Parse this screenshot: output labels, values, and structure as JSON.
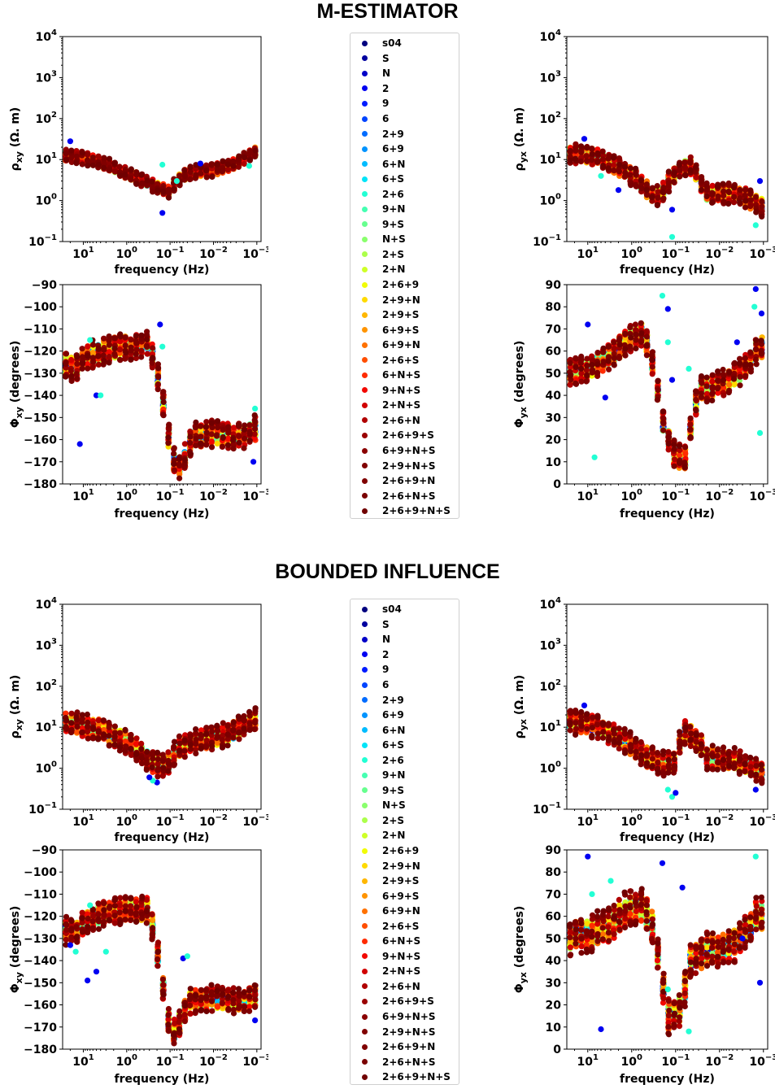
{
  "sections": [
    {
      "title": "M-ESTIMATOR"
    },
    {
      "title": "BOUNDED INFLUENCE"
    }
  ],
  "legend_entries": [
    "s04",
    "S",
    "N",
    "2",
    "9",
    "6",
    "2+9",
    "6+9",
    "6+N",
    "6+S",
    "2+6",
    "9+N",
    "9+S",
    "N+S",
    "2+S",
    "2+N",
    "2+6+9",
    "2+9+N",
    "2+9+S",
    "6+9+S",
    "6+9+N",
    "2+6+S",
    "6+N+S",
    "9+N+S",
    "2+N+S",
    "2+6+N",
    "2+6+9+S",
    "6+9+N+S",
    "2+9+N+S",
    "2+6+9+N",
    "2+6+N+S",
    "2+6+9+N+S"
  ],
  "legend_colors": [
    "#00007f",
    "#00009f",
    "#0000c8",
    "#0000f1",
    "#001cff",
    "#0044ff",
    "#006cff",
    "#0094ff",
    "#00bcff",
    "#00e4f8",
    "#22ffd4",
    "#45ffb2",
    "#67ff8f",
    "#8aff6d",
    "#acff4b",
    "#cfff28",
    "#f1fc06",
    "#ffda00",
    "#ffb700",
    "#ff9400",
    "#ff7100",
    "#ff4e00",
    "#ff2b00",
    "#f20800",
    "#d10000",
    "#b00000",
    "#9a0000",
    "#8a0000",
    "#800000",
    "#7f0000",
    "#7a0000",
    "#700000"
  ],
  "axis_labels": {
    "frequency": "frequency (Hz)",
    "rho_xy": "ρxy (Ω. m)",
    "rho_yx": "ρyx (Ω. m)",
    "phi_xy": "Φxy (degrees)",
    "phi_yx": "Φyx (degrees)"
  },
  "chart_data": [
    {
      "id": "m-rho-xy",
      "type": "scatter",
      "section": "M-ESTIMATOR",
      "ylabel": "ρxy (Ω. m)",
      "xlabel": "frequency (Hz)",
      "xscale": "log",
      "x_decreasing": true,
      "xlim": [
        30,
        0.0008
      ],
      "yscale": "log",
      "ylim": [
        0.1,
        10000
      ],
      "xticks": [
        "10^1",
        "10^0",
        "10^-1",
        "10^-2",
        "10^-3"
      ],
      "yticks": [
        "10^-1",
        "10^0",
        "10^1",
        "10^2",
        "10^3",
        "10^4"
      ],
      "mean_curve": {
        "f": [
          30,
          10,
          3,
          1,
          0.3,
          0.15,
          0.1,
          0.05,
          0.03,
          0.01,
          0.003,
          0.001
        ],
        "v": [
          13,
          11,
          7.5,
          4.5,
          2.5,
          1.9,
          1.6,
          4,
          5,
          5.5,
          8,
          16
        ]
      },
      "spread": 0.12,
      "outliers": [
        {
          "f": 20,
          "v": 28
        },
        {
          "f": 0.15,
          "v": 7.5
        },
        {
          "f": 0.15,
          "v": 0.5
        },
        {
          "f": 0.07,
          "v": 3
        },
        {
          "f": 0.02,
          "v": 8
        },
        {
          "f": 0.0015,
          "v": 7
        }
      ]
    },
    {
      "id": "m-phi-xy",
      "type": "scatter",
      "section": "M-ESTIMATOR",
      "ylabel": "Φxy (degrees)",
      "xlabel": "frequency (Hz)",
      "xscale": "log",
      "x_decreasing": true,
      "xlim": [
        30,
        0.0008
      ],
      "yscale": "linear",
      "ylim": [
        -180,
        -90
      ],
      "xticks": [
        "10^1",
        "10^0",
        "10^-1",
        "10^-2",
        "10^-3"
      ],
      "yticks": [
        "-90",
        "-100",
        "-110",
        "-120",
        "-130",
        "-140",
        "-150",
        "-160",
        "-170",
        "-180"
      ],
      "mean_curve": {
        "f": [
          30,
          15,
          10,
          5,
          2,
          1,
          0.5,
          0.3,
          0.2,
          0.15,
          0.12,
          0.1,
          0.08,
          0.06,
          0.04,
          0.03,
          0.02,
          0.01,
          0.005,
          0.002,
          0.001
        ],
        "v": [
          -126,
          -128,
          -123,
          -121,
          -119,
          -118,
          -118,
          -116,
          -130,
          -141,
          -155,
          -162,
          -170,
          -172,
          -165,
          -158,
          -158,
          -157,
          -158,
          -158,
          -155
        ]
      },
      "spread": 3,
      "outliers": [
        {
          "f": 12,
          "v": -162
        },
        {
          "f": 7,
          "v": -115
        },
        {
          "f": 5,
          "v": -140
        },
        {
          "f": 4,
          "v": -140
        },
        {
          "f": 0.17,
          "v": -108
        },
        {
          "f": 0.15,
          "v": -118
        },
        {
          "f": 0.0012,
          "v": -170
        },
        {
          "f": 0.0011,
          "v": -146
        }
      ]
    },
    {
      "id": "m-rho-yx",
      "type": "scatter",
      "section": "M-ESTIMATOR",
      "ylabel": "ρyx (Ω. m)",
      "xlabel": "frequency (Hz)",
      "xscale": "log",
      "x_decreasing": true,
      "xlim": [
        30,
        0.0008
      ],
      "yscale": "log",
      "ylim": [
        0.1,
        10000
      ],
      "xticks": [
        "10^1",
        "10^0",
        "10^-1",
        "10^-2",
        "10^-3"
      ],
      "yticks": [
        "10^-1",
        "10^0",
        "10^1",
        "10^2",
        "10^3",
        "10^4"
      ],
      "mean_curve": {
        "f": [
          30,
          10,
          3,
          1,
          0.5,
          0.3,
          0.2,
          0.1,
          0.05,
          0.03,
          0.02,
          0.01,
          0.005,
          0.003,
          0.002,
          0.001
        ],
        "v": [
          14,
          13,
          8,
          4,
          2,
          1.3,
          1.5,
          4.5,
          8,
          3,
          1.5,
          1.5,
          1.5,
          1.3,
          1,
          0.7
        ]
      },
      "spread": 0.18,
      "outliers": [
        {
          "f": 12,
          "v": 32
        },
        {
          "f": 5,
          "v": 4
        },
        {
          "f": 2,
          "v": 1.8
        },
        {
          "f": 0.12,
          "v": 0.13
        },
        {
          "f": 0.12,
          "v": 0.6
        },
        {
          "f": 0.0015,
          "v": 0.25
        },
        {
          "f": 0.0012,
          "v": 3
        }
      ]
    },
    {
      "id": "m-phi-yx",
      "type": "scatter",
      "section": "M-ESTIMATOR",
      "ylabel": "Φyx (degrees)",
      "xlabel": "frequency (Hz)",
      "xscale": "log",
      "x_decreasing": true,
      "xlim": [
        30,
        0.0008
      ],
      "yscale": "linear",
      "ylim": [
        0,
        90
      ],
      "xticks": [
        "10^1",
        "10^0",
        "10^-1",
        "10^-2",
        "10^-3"
      ],
      "yticks": [
        "90",
        "80",
        "70",
        "60",
        "50",
        "40",
        "30",
        "20",
        "10",
        "0"
      ],
      "mean_curve": {
        "f": [
          30,
          10,
          3,
          1,
          0.6,
          0.4,
          0.3,
          0.2,
          0.1,
          0.06,
          0.04,
          0.03,
          0.02,
          0.01,
          0.005,
          0.002,
          0.0015,
          0.001
        ],
        "v": [
          50,
          52,
          58,
          66,
          68,
          62,
          50,
          28,
          12,
          12,
          30,
          42,
          43,
          45,
          48,
          55,
          60,
          62
        ]
      },
      "spread": 3,
      "outliers": [
        {
          "f": 10,
          "v": 72
        },
        {
          "f": 7,
          "v": 12
        },
        {
          "f": 4,
          "v": 39
        },
        {
          "f": 0.2,
          "v": 85
        },
        {
          "f": 0.15,
          "v": 79
        },
        {
          "f": 0.15,
          "v": 64
        },
        {
          "f": 0.12,
          "v": 47
        },
        {
          "f": 0.05,
          "v": 52
        },
        {
          "f": 0.004,
          "v": 64
        },
        {
          "f": 0.0016,
          "v": 80
        },
        {
          "f": 0.0015,
          "v": 88
        },
        {
          "f": 0.0012,
          "v": 23
        },
        {
          "f": 0.0011,
          "v": 77
        }
      ]
    },
    {
      "id": "b-rho-xy",
      "type": "scatter",
      "section": "BOUNDED INFLUENCE",
      "ylabel": "ρxy (Ω. m)",
      "xlabel": "frequency (Hz)",
      "xscale": "log",
      "x_decreasing": true,
      "xlim": [
        30,
        0.0008
      ],
      "yscale": "log",
      "ylim": [
        0.1,
        10000
      ],
      "xticks": [
        "10^1",
        "10^0",
        "10^-1",
        "10^-2",
        "10^-3"
      ],
      "yticks": [
        "10^-1",
        "10^0",
        "10^1",
        "10^2",
        "10^3",
        "10^4"
      ],
      "mean_curve": {
        "f": [
          30,
          10,
          3,
          1,
          0.5,
          0.3,
          0.2,
          0.15,
          0.1,
          0.06,
          0.03,
          0.01,
          0.003,
          0.001
        ],
        "v": [
          13,
          11,
          7.5,
          4,
          2.5,
          1.5,
          1.2,
          1.1,
          1.5,
          3,
          4.5,
          5.5,
          8,
          16
        ]
      },
      "spread": 0.22,
      "outliers": [
        {
          "f": 0.2,
          "v": 0.45
        },
        {
          "f": 0.25,
          "v": 0.5
        },
        {
          "f": 0.3,
          "v": 0.6
        }
      ]
    },
    {
      "id": "b-phi-xy",
      "type": "scatter",
      "section": "BOUNDED INFLUENCE",
      "ylabel": "Φxy (degrees)",
      "xlabel": "frequency (Hz)",
      "xscale": "log",
      "x_decreasing": true,
      "xlim": [
        30,
        0.0008
      ],
      "yscale": "linear",
      "ylim": [
        -180,
        -90
      ],
      "xticks": [
        "10^1",
        "10^0",
        "10^-1",
        "10^-2",
        "10^-3"
      ],
      "yticks": [
        "-90",
        "-100",
        "-110",
        "-120",
        "-130",
        "-140",
        "-150",
        "-160",
        "-170",
        "-180"
      ],
      "mean_curve": {
        "f": [
          30,
          15,
          10,
          5,
          2,
          1,
          0.5,
          0.3,
          0.2,
          0.15,
          0.12,
          0.1,
          0.08,
          0.06,
          0.04,
          0.03,
          0.02,
          0.01,
          0.005,
          0.002,
          0.001
        ],
        "v": [
          -126,
          -128,
          -123,
          -120,
          -118,
          -117,
          -117,
          -117,
          -135,
          -150,
          -163,
          -170,
          -172,
          -168,
          -160,
          -158,
          -158,
          -157,
          -158,
          -158,
          -155
        ]
      },
      "spread": 3,
      "outliers": [
        {
          "f": 20,
          "v": -133
        },
        {
          "f": 15,
          "v": -136
        },
        {
          "f": 8,
          "v": -149
        },
        {
          "f": 7,
          "v": -115
        },
        {
          "f": 5,
          "v": -145
        },
        {
          "f": 3,
          "v": -136
        },
        {
          "f": 0.05,
          "v": -139
        },
        {
          "f": 0.04,
          "v": -138
        },
        {
          "f": 0.0011,
          "v": -167
        }
      ]
    },
    {
      "id": "b-rho-yx",
      "type": "scatter",
      "section": "BOUNDED INFLUENCE",
      "ylabel": "ρyx (Ω. m)",
      "xlabel": "frequency (Hz)",
      "xscale": "log",
      "x_decreasing": true,
      "xlim": [
        30,
        0.0008
      ],
      "yscale": "log",
      "ylim": [
        0.1,
        10000
      ],
      "xticks": [
        "10^1",
        "10^0",
        "10^-1",
        "10^-2",
        "10^-3"
      ],
      "yticks": [
        "10^-1",
        "10^0",
        "10^1",
        "10^2",
        "10^3",
        "10^4"
      ],
      "mean_curve": {
        "f": [
          30,
          10,
          3,
          1,
          0.5,
          0.3,
          0.2,
          0.1,
          0.06,
          0.04,
          0.02,
          0.01,
          0.005,
          0.003,
          0.002,
          0.001
        ],
        "v": [
          14,
          12,
          7,
          3.5,
          2,
          1.5,
          1.3,
          1.5,
          8,
          6,
          1.8,
          1.7,
          1.6,
          1.3,
          1.1,
          0.8
        ]
      },
      "spread": 0.22,
      "outliers": [
        {
          "f": 12,
          "v": 34
        },
        {
          "f": 0.12,
          "v": 0.2
        },
        {
          "f": 0.1,
          "v": 0.25
        },
        {
          "f": 0.15,
          "v": 0.3
        },
        {
          "f": 0.0015,
          "v": 0.3
        }
      ]
    },
    {
      "id": "b-phi-yx",
      "type": "scatter",
      "section": "BOUNDED INFLUENCE",
      "ylabel": "Φyx (degrees)",
      "xlabel": "frequency (Hz)",
      "xscale": "log",
      "x_decreasing": true,
      "xlim": [
        30,
        0.0008
      ],
      "yscale": "linear",
      "ylim": [
        0,
        90
      ],
      "xticks": [
        "10^1",
        "10^0",
        "10^-1",
        "10^-2",
        "10^-3"
      ],
      "yticks": [
        "90",
        "80",
        "70",
        "60",
        "50",
        "40",
        "30",
        "20",
        "10",
        "0"
      ],
      "mean_curve": {
        "f": [
          30,
          10,
          3,
          1,
          0.6,
          0.4,
          0.3,
          0.2,
          0.15,
          0.1,
          0.07,
          0.05,
          0.04,
          0.03,
          0.02,
          0.01,
          0.005,
          0.002,
          0.0015,
          0.001
        ],
        "v": [
          50,
          52,
          56,
          65,
          64,
          60,
          52,
          30,
          15,
          15,
          20,
          38,
          40,
          42,
          45,
          45,
          47,
          55,
          60,
          60
        ]
      },
      "spread": 4,
      "outliers": [
        {
          "f": 10,
          "v": 87
        },
        {
          "f": 8,
          "v": 70
        },
        {
          "f": 5,
          "v": 9
        },
        {
          "f": 3,
          "v": 76
        },
        {
          "f": 0.2,
          "v": 84
        },
        {
          "f": 0.15,
          "v": 27
        },
        {
          "f": 0.07,
          "v": 73
        },
        {
          "f": 0.05,
          "v": 8
        },
        {
          "f": 0.003,
          "v": 50
        },
        {
          "f": 0.0015,
          "v": 87
        },
        {
          "f": 0.0012,
          "v": 30
        }
      ]
    }
  ]
}
